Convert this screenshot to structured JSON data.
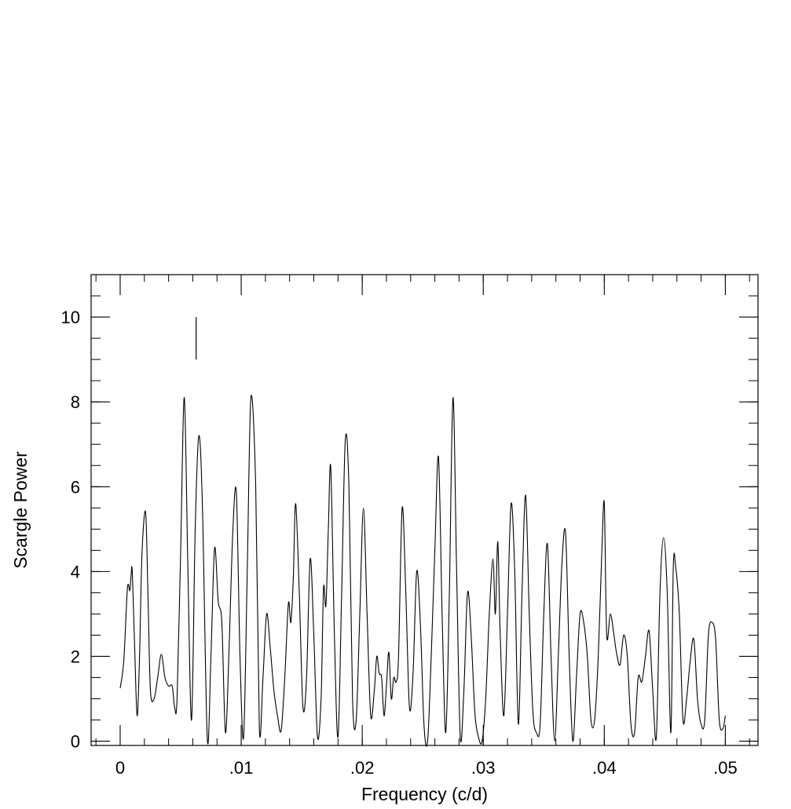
{
  "chart_data": {
    "type": "line",
    "title": "",
    "xlabel": "Frequency (c/d)",
    "ylabel": "Scargle Power",
    "xlim": [
      -0.0024,
      0.0527
    ],
    "ylim": [
      -0.1,
      11
    ],
    "x_ticks": [
      {
        "value": 0,
        "label": "0"
      },
      {
        "value": 0.01,
        "label": ".01"
      },
      {
        "value": 0.02,
        "label": ".02"
      },
      {
        "value": 0.03,
        "label": ".03"
      },
      {
        "value": 0.04,
        "label": ".04"
      },
      {
        "value": 0.05,
        "label": ".05"
      }
    ],
    "x_minor_step": 0.002,
    "y_ticks": [
      {
        "value": 0,
        "label": "0"
      },
      {
        "value": 2,
        "label": "2"
      },
      {
        "value": 4,
        "label": "4"
      },
      {
        "value": 6,
        "label": "6"
      },
      {
        "value": 8,
        "label": "8"
      },
      {
        "value": 10,
        "label": "10"
      }
    ],
    "y_minor_step": 0.5,
    "grid": false,
    "marker": {
      "x": 0.00628,
      "y_from": 9.0,
      "y_to": 10.0
    },
    "line_color": "#000000",
    "series": [
      {
        "x": [
          0.0,
          0.0003,
          0.0006,
          0.0008,
          0.0009,
          0.001,
          0.0012,
          0.0014,
          0.0016,
          0.0018,
          0.0021,
          0.0023,
          0.0025,
          0.0028,
          0.0031,
          0.0034,
          0.0037,
          0.004,
          0.0043,
          0.0045,
          0.0047,
          0.005,
          0.0053,
          0.0056,
          0.0059,
          0.0062,
          0.0065,
          0.0068,
          0.0072,
          0.0075,
          0.0078,
          0.0081,
          0.0084,
          0.0087,
          0.009,
          0.0093,
          0.0096,
          0.0099,
          0.0102,
          0.0105,
          0.0108,
          0.0112,
          0.0115,
          0.0118,
          0.0121,
          0.0124,
          0.0127,
          0.013,
          0.0133,
          0.0136,
          0.0139,
          0.0141,
          0.0143,
          0.0145,
          0.0148,
          0.0151,
          0.0154,
          0.0157,
          0.016,
          0.0163,
          0.0166,
          0.0168,
          0.017,
          0.0172,
          0.0174,
          0.0177,
          0.018,
          0.0183,
          0.0186,
          0.0189,
          0.0192,
          0.0195,
          0.0198,
          0.0201,
          0.0204,
          0.0207,
          0.021,
          0.0212,
          0.0214,
          0.0216,
          0.0218,
          0.022,
          0.0222,
          0.0224,
          0.0226,
          0.0228,
          0.023,
          0.0233,
          0.0236,
          0.0239,
          0.0242,
          0.0245,
          0.0248,
          0.0251,
          0.0254,
          0.0257,
          0.026,
          0.0263,
          0.0266,
          0.0269,
          0.0272,
          0.0275,
          0.0278,
          0.0281,
          0.0284,
          0.0287,
          0.029,
          0.0293,
          0.0296,
          0.0299,
          0.0302,
          0.0305,
          0.0308,
          0.031,
          0.0312,
          0.0314,
          0.0317,
          0.032,
          0.0323,
          0.0326,
          0.0329,
          0.0332,
          0.0335,
          0.0338,
          0.0341,
          0.0344,
          0.0347,
          0.035,
          0.0353,
          0.0356,
          0.0359,
          0.0362,
          0.0365,
          0.0368,
          0.0371,
          0.0374,
          0.0377,
          0.038,
          0.0383,
          0.0386,
          0.0389,
          0.0392,
          0.0395,
          0.0398,
          0.04,
          0.0402,
          0.0405,
          0.0408,
          0.041,
          0.0413,
          0.0416,
          0.0419,
          0.0422,
          0.0425,
          0.0428,
          0.0431,
          0.0434,
          0.0437,
          0.044,
          0.0443,
          0.0446,
          0.0449,
          0.0452,
          0.0455,
          0.0457,
          0.0459,
          0.0462,
          0.0465,
          0.0468,
          0.0471,
          0.0474,
          0.0477,
          0.048,
          0.0483,
          0.0486,
          0.0489,
          0.0492,
          0.0495,
          0.0498,
          0.05
        ],
        "y": [
          1.25,
          1.9,
          3.6,
          3.55,
          3.9,
          4.0,
          2.2,
          0.6,
          2.0,
          4.4,
          5.4,
          3.4,
          1.2,
          1.0,
          1.5,
          2.05,
          1.5,
          1.3,
          1.3,
          0.8,
          1.0,
          4.5,
          8.1,
          4.0,
          0.5,
          5.0,
          7.2,
          5.5,
          0.05,
          2.0,
          4.55,
          3.3,
          2.8,
          0.2,
          2.2,
          4.9,
          5.85,
          2.0,
          0.1,
          4.0,
          8.1,
          6.0,
          0.3,
          1.5,
          3.0,
          2.2,
          1.2,
          0.6,
          0.25,
          1.5,
          3.25,
          2.8,
          3.8,
          5.6,
          3.5,
          0.8,
          1.5,
          4.3,
          2.5,
          0.1,
          1.0,
          3.6,
          3.2,
          5.0,
          6.45,
          2.5,
          0.1,
          3.5,
          7.1,
          6.0,
          1.0,
          0.5,
          3.0,
          5.5,
          3.0,
          0.6,
          1.2,
          2.0,
          1.6,
          1.5,
          0.6,
          1.3,
          2.1,
          1.0,
          1.5,
          1.4,
          2.0,
          5.5,
          3.5,
          0.8,
          1.6,
          4.0,
          2.8,
          0.4,
          0.0,
          2.0,
          4.5,
          6.7,
          3.0,
          0.2,
          3.5,
          8.1,
          4.0,
          0.1,
          1.2,
          3.5,
          2.5,
          0.7,
          0.1,
          0.0,
          1.0,
          3.0,
          4.3,
          3.0,
          4.7,
          2.5,
          0.6,
          3.0,
          5.6,
          4.0,
          0.4,
          3.5,
          5.8,
          3.0,
          0.7,
          0.2,
          0.4,
          3.0,
          4.65,
          2.0,
          0.0,
          2.0,
          4.2,
          4.9,
          2.0,
          0.0,
          1.5,
          3.0,
          2.8,
          2.0,
          0.5,
          0.5,
          2.0,
          4.5,
          5.6,
          2.5,
          3.0,
          2.5,
          2.1,
          1.8,
          2.5,
          2.0,
          0.4,
          0.2,
          1.5,
          1.4,
          2.0,
          2.6,
          1.2,
          0.1,
          3.5,
          4.8,
          3.5,
          0.2,
          4.1,
          4.1,
          3.0,
          0.5,
          1.0,
          1.9,
          2.4,
          1.0,
          0.4,
          0.5,
          2.5,
          2.8,
          2.4,
          0.5,
          0.3,
          0.6
        ]
      }
    ]
  }
}
